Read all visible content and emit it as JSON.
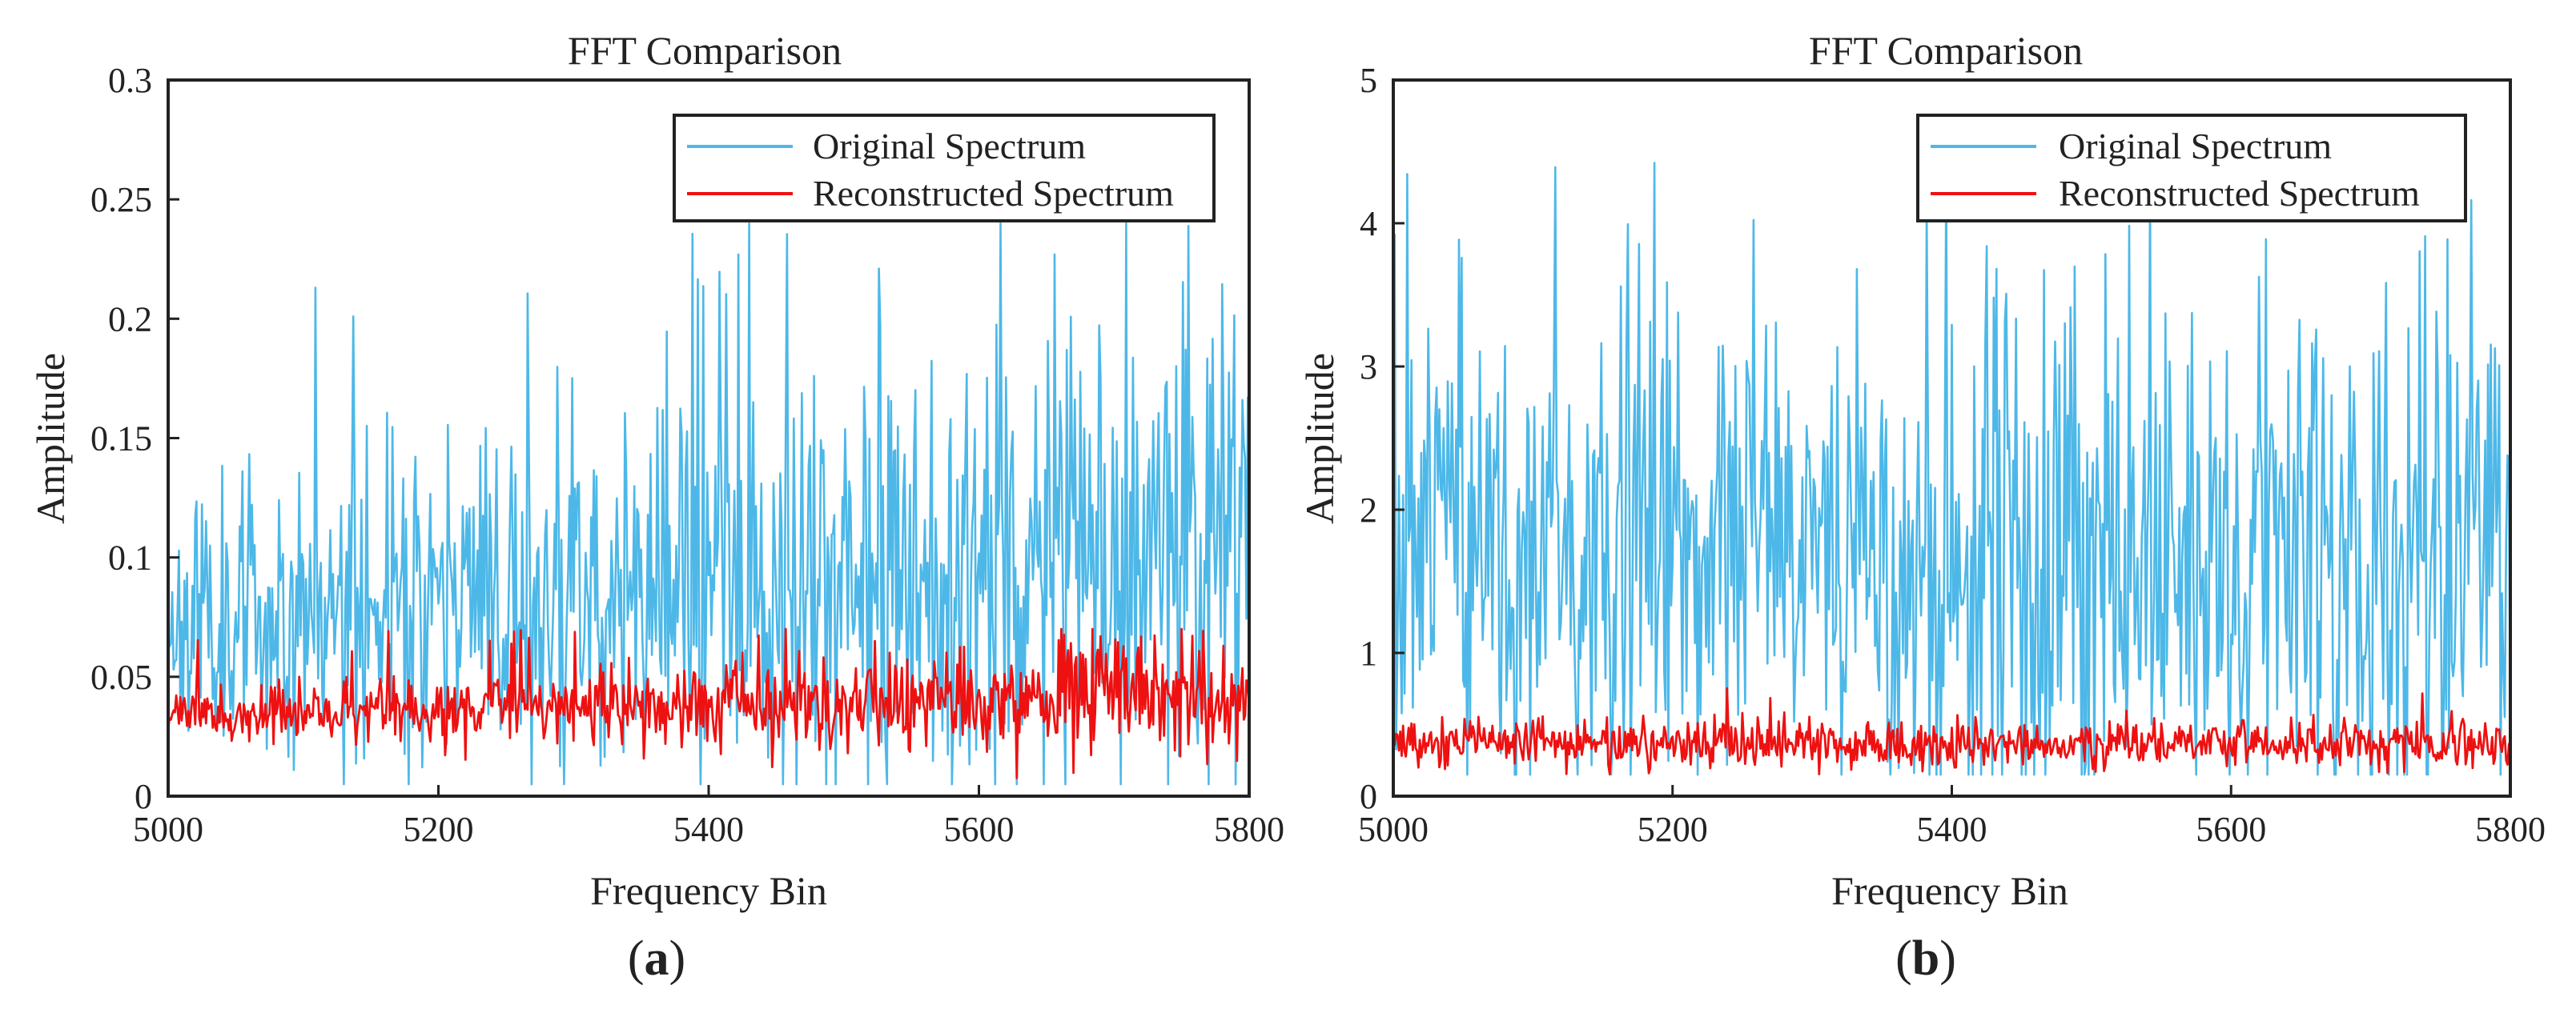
{
  "chart_data": [
    {
      "type": "line",
      "title": "FFT Comparison",
      "xlabel": "Frequency Bin",
      "ylabel": "Amplitude",
      "xlim": [
        5000,
        5800
      ],
      "ylim": [
        0,
        0.3
      ],
      "xticks": [
        5000,
        5200,
        5400,
        5600,
        5800
      ],
      "yticks": [
        0,
        0.05,
        0.1,
        0.15,
        0.2,
        0.25,
        0.3
      ],
      "xtick_labels": [
        "5000",
        "5200",
        "5400",
        "5600",
        "5800"
      ],
      "ytick_labels": [
        "0",
        "0.05",
        "0.1",
        "0.15",
        "0.2",
        "0.25",
        "0.3"
      ],
      "legend_position": "top-right",
      "panel_label": "a",
      "grid": false,
      "series": [
        {
          "name": "Original Spectrum",
          "color": "#4db8e8",
          "base_start": 0.075,
          "base_end": 0.105,
          "spread_start": 0.025,
          "spread_end": 0.06,
          "min": 0.005,
          "max": 0.24,
          "peak_max": 0.24,
          "seed": 11
        },
        {
          "name": "Reconstructed Spectrum",
          "color": "#ee1111",
          "base_start": 0.034,
          "base_end": 0.042,
          "spread_start": 0.005,
          "spread_end": 0.013,
          "min": 0.003,
          "max": 0.07,
          "peak_max": 0.07,
          "seed": 23
        }
      ]
    },
    {
      "type": "line",
      "title": "FFT Comparison",
      "xlabel": "Frequency Bin",
      "ylabel": "Amplitude",
      "xlim": [
        5000,
        5800
      ],
      "ylim": [
        0,
        5
      ],
      "xticks": [
        5000,
        5200,
        5400,
        5600,
        5800
      ],
      "yticks": [
        0,
        1,
        2,
        3,
        4,
        5
      ],
      "xtick_labels": [
        "5000",
        "5200",
        "5400",
        "5600",
        "5800"
      ],
      "ytick_labels": [
        "0",
        "1",
        "2",
        "3",
        "4",
        "5"
      ],
      "legend_position": "top-right",
      "panel_label": "b",
      "grid": false,
      "series": [
        {
          "name": "Original Spectrum",
          "color": "#4db8e8",
          "base_start": 1.7,
          "base_end": 1.7,
          "spread_start": 0.9,
          "spread_end": 0.9,
          "min": 0.15,
          "max": 4.5,
          "peak_max": 4.5,
          "seed": 37
        },
        {
          "name": "Reconstructed Spectrum",
          "color": "#ee1111",
          "base_start": 0.38,
          "base_end": 0.36,
          "spread_start": 0.09,
          "spread_end": 0.08,
          "min": 0.02,
          "max": 0.8,
          "peak_max": 0.8,
          "seed": 53
        }
      ]
    }
  ]
}
